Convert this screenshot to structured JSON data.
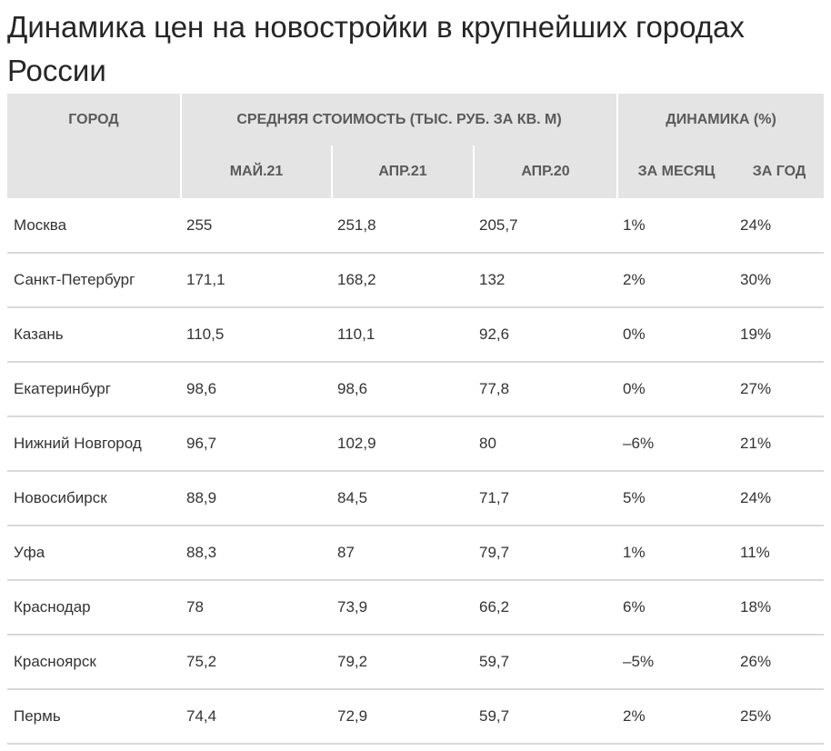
{
  "title": "Динамика цен на новостройки в крупнейших городах России",
  "header": {
    "city": "ГОРОД",
    "avg_price": "СРЕДНЯЯ СТОИМОСТЬ (ТЫС. РУБ. ЗА КВ. М)",
    "dynamics": "ДИНАМИКА (%)",
    "may21": "МАЙ.21",
    "apr21": "АПР.21",
    "apr20": "АПР.20",
    "month": "ЗА МЕСЯЦ",
    "year": "ЗА ГОД"
  },
  "rows": [
    {
      "city": "Москва",
      "may21": "255",
      "apr21": "251,8",
      "apr20": "205,7",
      "month": "1%",
      "year": "24%"
    },
    {
      "city": "Санкт-Петербург",
      "may21": "171,1",
      "apr21": "168,2",
      "apr20": "132",
      "month": "2%",
      "year": "30%"
    },
    {
      "city": "Казань",
      "may21": "110,5",
      "apr21": "110,1",
      "apr20": "92,6",
      "month": "0%",
      "year": "19%"
    },
    {
      "city": "Екатеринбург",
      "may21": "98,6",
      "apr21": "98,6",
      "apr20": "77,8",
      "month": "0%",
      "year": "27%"
    },
    {
      "city": "Нижний Новгород",
      "may21": "96,7",
      "apr21": "102,9",
      "apr20": "80",
      "month": "–6%",
      "year": "21%"
    },
    {
      "city": "Новосибирск",
      "may21": "88,9",
      "apr21": "84,5",
      "apr20": "71,7",
      "month": "5%",
      "year": "24%"
    },
    {
      "city": "Уфа",
      "may21": "88,3",
      "apr21": "87",
      "apr20": "79,7",
      "month": "1%",
      "year": "11%"
    },
    {
      "city": "Краснодар",
      "may21": "78",
      "apr21": "73,9",
      "apr20": "66,2",
      "month": "6%",
      "year": "18%"
    },
    {
      "city": "Красноярск",
      "may21": "75,2",
      "apr21": "79,2",
      "apr20": "59,7",
      "month": "–5%",
      "year": "26%"
    },
    {
      "city": "Пермь",
      "may21": "74,4",
      "apr21": "72,9",
      "apr20": "59,7",
      "month": "2%",
      "year": "25%"
    }
  ]
}
